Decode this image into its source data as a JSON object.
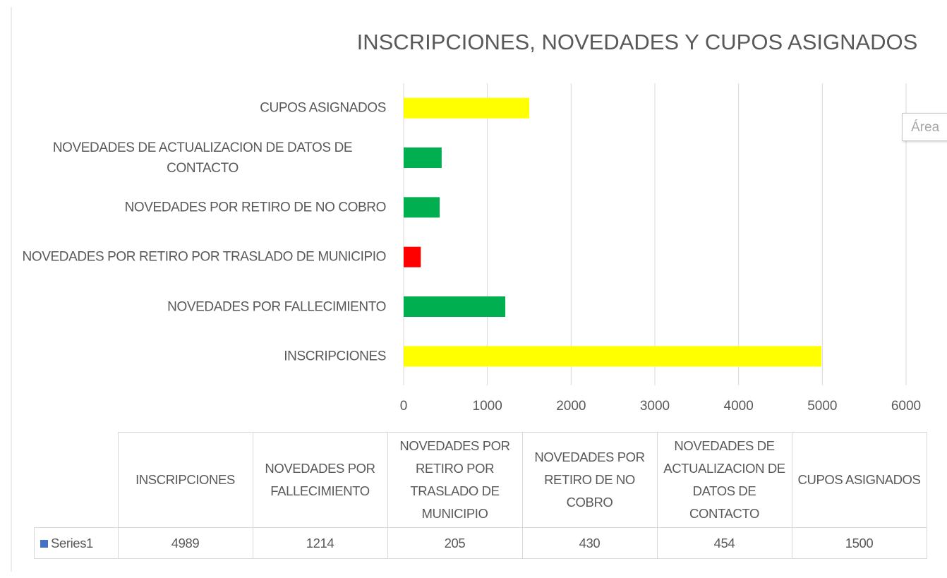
{
  "chart_data": {
    "type": "bar",
    "orientation": "horizontal",
    "title": "INSCRIPCIONES, NOVEDADES Y CUPOS ASIGNADOS",
    "categories": [
      "INSCRIPCIONES",
      "NOVEDADES POR FALLECIMIENTO",
      "NOVEDADES POR RETIRO POR TRASLADO DE MUNICIPIO",
      "NOVEDADES POR RETIRO DE NO COBRO",
      "NOVEDADES DE ACTUALIZACION DE DATOS DE CONTACTO",
      "CUPOS ASIGNADOS"
    ],
    "series": [
      {
        "name": "Series1",
        "color": "#4472c4",
        "values": [
          4989,
          1214,
          205,
          430,
          454,
          1500
        ]
      }
    ],
    "bar_colors": [
      "#ffff00",
      "#00b050",
      "#ff0000",
      "#00b050",
      "#00b050",
      "#ffff00"
    ],
    "xlim": [
      0,
      6000
    ],
    "xticks": [
      0,
      1000,
      2000,
      3000,
      4000,
      5000,
      6000
    ],
    "grid": true,
    "data_table": true,
    "tooltip": "Área"
  }
}
